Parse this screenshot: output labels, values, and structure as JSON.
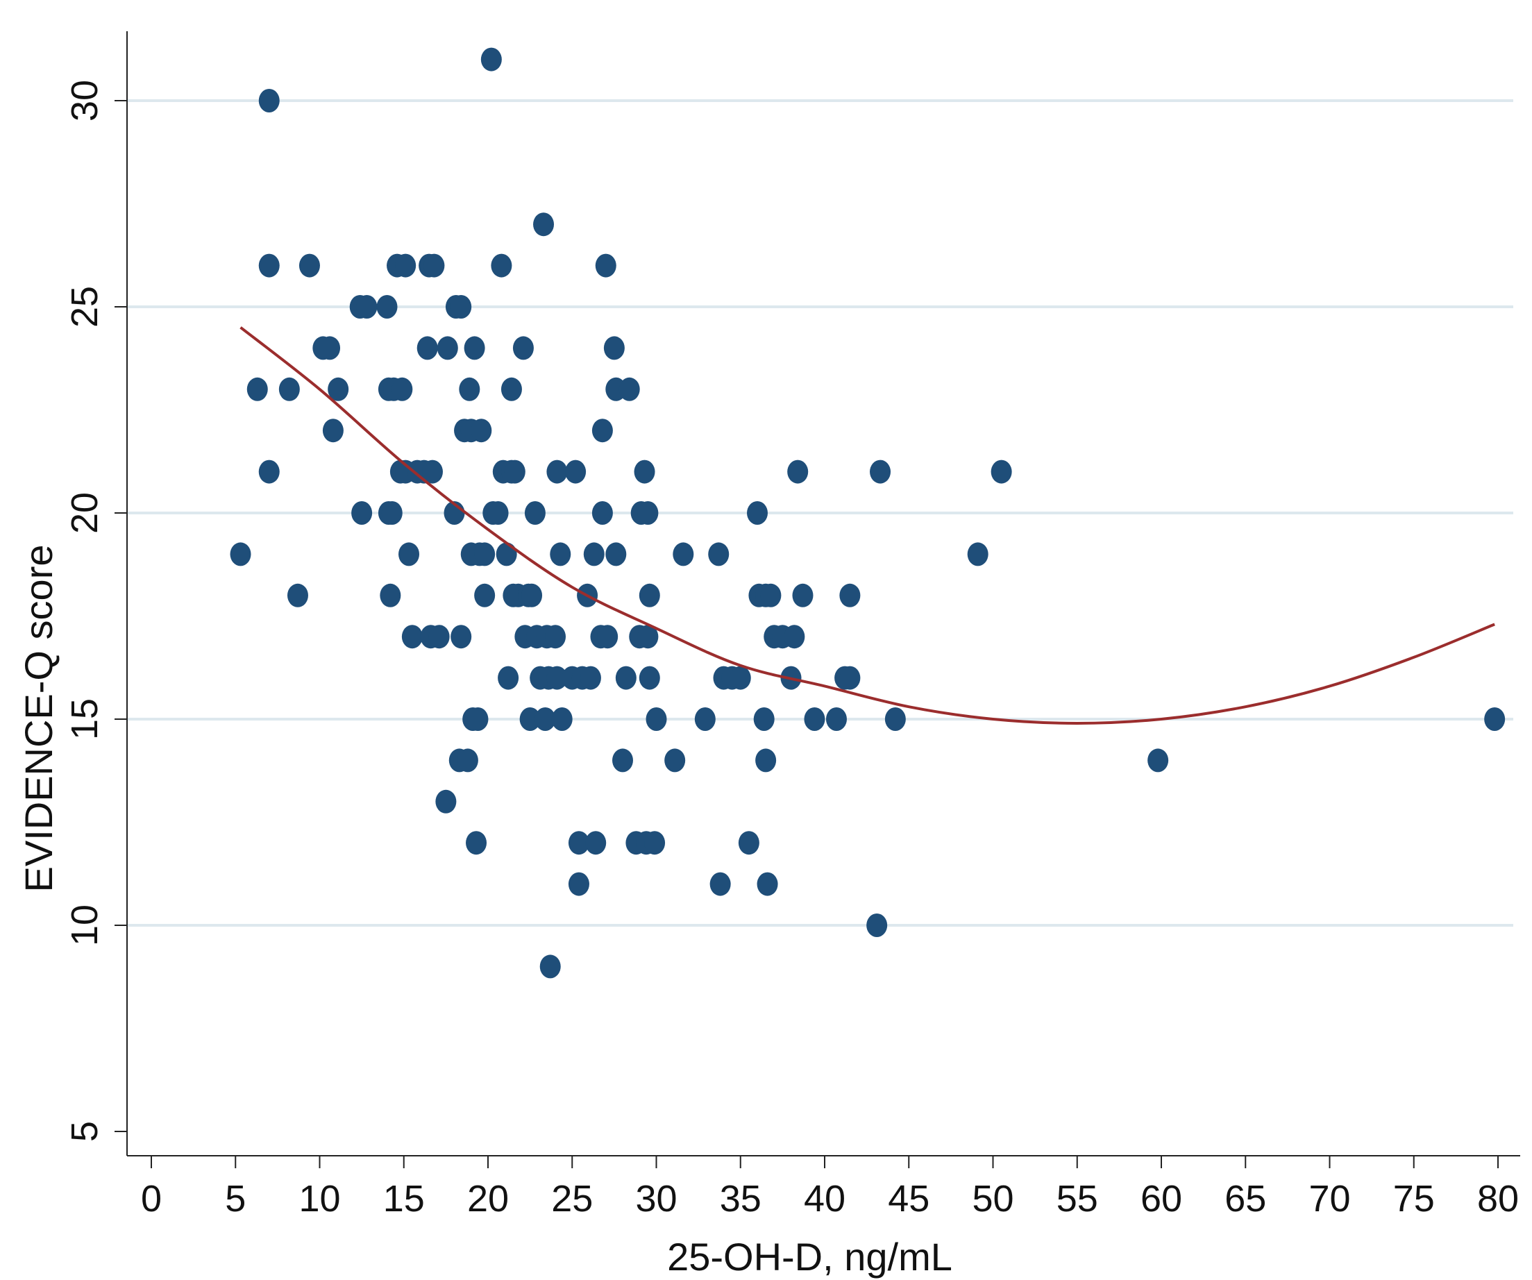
{
  "chart_data": {
    "type": "scatter",
    "title": "",
    "xlabel": "25-OH-D, ng/mL",
    "ylabel": "EVIDENCE-Q score",
    "xlim": [
      0,
      80
    ],
    "ylim": [
      5,
      31
    ],
    "x_ticks": [
      0,
      5,
      10,
      15,
      20,
      25,
      30,
      35,
      40,
      45,
      50,
      55,
      60,
      65,
      70,
      75,
      80
    ],
    "y_ticks": [
      5,
      10,
      15,
      20,
      25,
      30
    ],
    "grid": "horizontal",
    "point_color": "#1f4e79",
    "fit_line_color": "#9b2d2d",
    "grid_color": "#dde8ee",
    "series": [
      {
        "type": "scatter",
        "points": [
          [
            5.3,
            19
          ],
          [
            6.3,
            23
          ],
          [
            7.0,
            30
          ],
          [
            7.0,
            26
          ],
          [
            7.0,
            21
          ],
          [
            8.2,
            23
          ],
          [
            8.7,
            18
          ],
          [
            9.4,
            26
          ],
          [
            10.2,
            24
          ],
          [
            10.6,
            24
          ],
          [
            10.8,
            22
          ],
          [
            11.1,
            23
          ],
          [
            12.4,
            25
          ],
          [
            12.8,
            25
          ],
          [
            12.5,
            20
          ],
          [
            14.0,
            25
          ],
          [
            14.1,
            20
          ],
          [
            14.3,
            20
          ],
          [
            14.2,
            18
          ],
          [
            14.1,
            23
          ],
          [
            14.4,
            23
          ],
          [
            14.6,
            26
          ],
          [
            15.1,
            26
          ],
          [
            14.9,
            23
          ],
          [
            14.8,
            21
          ],
          [
            15.1,
            21
          ],
          [
            15.3,
            19
          ],
          [
            15.5,
            17
          ],
          [
            15.8,
            21
          ],
          [
            16.2,
            21
          ],
          [
            16.5,
            26
          ],
          [
            16.8,
            26
          ],
          [
            16.4,
            24
          ],
          [
            16.7,
            21
          ],
          [
            16.6,
            17
          ],
          [
            17.1,
            17
          ],
          [
            17.5,
            13
          ],
          [
            17.6,
            24
          ],
          [
            18.0,
            20
          ],
          [
            18.1,
            25
          ],
          [
            18.4,
            25
          ],
          [
            18.3,
            14
          ],
          [
            18.4,
            17
          ],
          [
            18.6,
            22
          ],
          [
            18.8,
            14
          ],
          [
            18.9,
            23
          ],
          [
            19.0,
            22
          ],
          [
            19.0,
            19
          ],
          [
            19.1,
            15
          ],
          [
            19.2,
            24
          ],
          [
            19.4,
            15
          ],
          [
            19.3,
            12
          ],
          [
            19.6,
            22
          ],
          [
            19.5,
            19
          ],
          [
            19.8,
            18
          ],
          [
            19.8,
            19
          ],
          [
            20.2,
            31
          ],
          [
            20.3,
            20
          ],
          [
            20.6,
            20
          ],
          [
            20.8,
            26
          ],
          [
            20.9,
            21
          ],
          [
            21.1,
            19
          ],
          [
            21.2,
            16
          ],
          [
            21.4,
            21
          ],
          [
            21.6,
            21
          ],
          [
            21.4,
            23
          ],
          [
            21.5,
            18
          ],
          [
            21.8,
            18
          ],
          [
            22.1,
            24
          ],
          [
            22.2,
            17
          ],
          [
            22.4,
            18
          ],
          [
            22.5,
            15
          ],
          [
            22.6,
            18
          ],
          [
            22.8,
            20
          ],
          [
            22.9,
            17
          ],
          [
            23.1,
            16
          ],
          [
            23.3,
            27
          ],
          [
            23.4,
            15
          ],
          [
            23.6,
            16
          ],
          [
            23.5,
            17
          ],
          [
            23.7,
            9
          ],
          [
            24.0,
            17
          ],
          [
            24.1,
            21
          ],
          [
            24.1,
            16
          ],
          [
            24.3,
            19
          ],
          [
            24.4,
            15
          ],
          [
            25.0,
            16
          ],
          [
            25.2,
            21
          ],
          [
            25.4,
            12
          ],
          [
            25.4,
            11
          ],
          [
            25.6,
            16
          ],
          [
            25.9,
            18
          ],
          [
            26.1,
            16
          ],
          [
            26.3,
            19
          ],
          [
            26.4,
            12
          ],
          [
            26.7,
            17
          ],
          [
            26.8,
            20
          ],
          [
            26.8,
            22
          ],
          [
            27.0,
            26
          ],
          [
            27.1,
            17
          ],
          [
            27.5,
            24
          ],
          [
            27.6,
            19
          ],
          [
            27.6,
            23
          ],
          [
            28.0,
            14
          ],
          [
            28.2,
            16
          ],
          [
            28.4,
            23
          ],
          [
            28.8,
            12
          ],
          [
            29.0,
            17
          ],
          [
            29.1,
            20
          ],
          [
            29.3,
            21
          ],
          [
            29.4,
            12
          ],
          [
            29.5,
            17
          ],
          [
            29.5,
            20
          ],
          [
            29.6,
            18
          ],
          [
            29.6,
            16
          ],
          [
            29.9,
            12
          ],
          [
            30.0,
            15
          ],
          [
            31.1,
            14
          ],
          [
            31.6,
            19
          ],
          [
            32.9,
            15
          ],
          [
            33.7,
            19
          ],
          [
            33.8,
            11
          ],
          [
            34.0,
            16
          ],
          [
            34.5,
            16
          ],
          [
            35.0,
            16
          ],
          [
            35.5,
            12
          ],
          [
            36.0,
            20
          ],
          [
            36.1,
            18
          ],
          [
            36.4,
            15
          ],
          [
            36.5,
            14
          ],
          [
            36.5,
            18
          ],
          [
            36.6,
            11
          ],
          [
            36.8,
            18
          ],
          [
            37.0,
            17
          ],
          [
            37.5,
            17
          ],
          [
            38.0,
            16
          ],
          [
            38.2,
            17
          ],
          [
            38.4,
            21
          ],
          [
            38.7,
            18
          ],
          [
            39.4,
            15
          ],
          [
            40.7,
            15
          ],
          [
            41.2,
            16
          ],
          [
            41.5,
            16
          ],
          [
            41.5,
            18
          ],
          [
            43.1,
            10
          ],
          [
            43.3,
            21
          ],
          [
            44.2,
            15
          ],
          [
            49.1,
            19
          ],
          [
            50.5,
            21
          ],
          [
            59.8,
            14
          ],
          [
            79.8,
            15
          ]
        ]
      },
      {
        "type": "fit_line",
        "x_range": [
          5.3,
          79.8
        ],
        "points": [
          [
            5.3,
            24.5
          ],
          [
            10,
            23.0
          ],
          [
            15,
            21.2
          ],
          [
            20,
            19.6
          ],
          [
            25,
            18.2
          ],
          [
            30,
            17.2
          ],
          [
            35,
            16.3
          ],
          [
            40,
            15.8
          ],
          [
            45,
            15.3
          ],
          [
            50,
            15.0
          ],
          [
            55,
            14.9
          ],
          [
            60,
            15.0
          ],
          [
            65,
            15.3
          ],
          [
            70,
            15.8
          ],
          [
            75,
            16.5
          ],
          [
            79.8,
            17.3
          ]
        ]
      }
    ]
  }
}
